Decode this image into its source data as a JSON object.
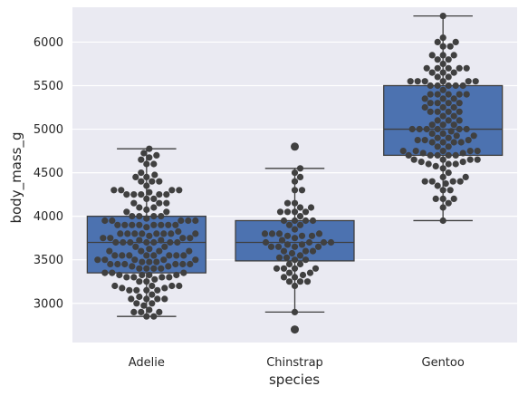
{
  "colors": {
    "plot_background": "#eaeaf2",
    "grid": "#ffffff",
    "box_fill": "#4c72b0",
    "box_edge": "#3f3f3f",
    "point": "#404040"
  },
  "chart_data": {
    "type": "box+swarm",
    "xlabel": "species",
    "ylabel": "body_mass_g",
    "categories": [
      "Adelie",
      "Chinstrap",
      "Gentoo"
    ],
    "ylim": [
      2550,
      6400
    ],
    "yticks": [
      3000,
      3500,
      4000,
      4500,
      5000,
      5500,
      6000
    ],
    "grid": true,
    "boxes": [
      {
        "category": "Adelie",
        "whisker_low": 2850,
        "q1": 3350,
        "median": 3700,
        "q3": 4000,
        "whisker_high": 4775,
        "outliers": []
      },
      {
        "category": "Chinstrap",
        "whisker_low": 2900,
        "q1": 3487.5,
        "median": 3700,
        "q3": 3950,
        "whisker_high": 4550,
        "outliers": [
          2700,
          4800
        ]
      },
      {
        "category": "Gentoo",
        "whisker_low": 3950,
        "q1": 4700,
        "median": 5000,
        "q3": 5500,
        "whisker_high": 6300,
        "outliers": []
      }
    ],
    "points": {
      "Adelie": [
        3750,
        3800,
        3250,
        3450,
        3650,
        3625,
        4675,
        3475,
        4250,
        3300,
        3700,
        3200,
        3800,
        4400,
        3700,
        3450,
        4500,
        3325,
        4200,
        3400,
        3600,
        3800,
        3950,
        3800,
        3800,
        3550,
        3200,
        3150,
        3950,
        3250,
        3900,
        3300,
        3900,
        3325,
        4150,
        3950,
        3550,
        3300,
        4650,
        3150,
        3900,
        3100,
        4400,
        3000,
        4600,
        3425,
        2975,
        3450,
        4150,
        3500,
        4300,
        3450,
        4050,
        2900,
        3700,
        3550,
        3800,
        2850,
        3750,
        3150,
        4400,
        3600,
        4050,
        2850,
        3950,
        3350,
        4100,
        3050,
        4450,
        3600,
        3900,
        3550,
        4150,
        3700,
        4250,
        3700,
        3900,
        3550,
        4000,
        3200,
        4700,
        3800,
        4200,
        3350,
        3550,
        3800,
        3500,
        3950,
        3600,
        3550,
        4300,
        3400,
        4450,
        3300,
        4300,
        3700,
        4350,
        2900,
        4100,
        3725,
        4725,
        3075,
        4250,
        2925,
        3550,
        3750,
        3900,
        3175,
        4775,
        3825,
        4600,
        3200,
        4275,
        3900,
        4075,
        2900,
        3775,
        3350,
        3325,
        3150,
        3500,
        3450,
        3875,
        3050,
        4000,
        3275,
        4300,
        3050,
        4000,
        3325,
        3500,
        3500,
        4475,
        3425,
        3900,
        3175,
        3975,
        3400,
        4250,
        3400,
        3475,
        3050,
        3725,
        3000,
        3650,
        4250,
        3475,
        3450,
        3750,
        3700,
        4000
      ],
      "Chinstrap": [
        3500,
        3900,
        3650,
        3525,
        3725,
        3950,
        3250,
        3750,
        4150,
        3700,
        3800,
        3775,
        3700,
        4050,
        3575,
        4050,
        3300,
        3700,
        3450,
        4400,
        3600,
        3400,
        2900,
        3800,
        3300,
        4150,
        3400,
        3800,
        3700,
        4550,
        3200,
        4300,
        3350,
        4100,
        3600,
        3900,
        3850,
        4800,
        2700,
        4500,
        3950,
        3650,
        3550,
        3500,
        3675,
        4450,
        3400,
        4300,
        3250,
        3675,
        3325,
        3950,
        3600,
        4050,
        3350,
        3450,
        3250,
        4050,
        3800,
        3525,
        3950,
        3650,
        3650,
        4000,
        3400,
        3775,
        4100,
        3775
      ],
      "Gentoo": [
        4500,
        5700,
        4450,
        5700,
        5400,
        4550,
        4800,
        5200,
        4400,
        5150,
        4650,
        5550,
        4650,
        5850,
        4200,
        5850,
        4150,
        6300,
        4800,
        5350,
        5700,
        5000,
        4400,
        5050,
        5000,
        5100,
        4100,
        5650,
        4600,
        5550,
        5250,
        4700,
        5050,
        6050,
        5150,
        5400,
        4950,
        5250,
        4350,
        5350,
        3950,
        5700,
        4300,
        4750,
        5550,
        4900,
        4200,
        5400,
        5100,
        5300,
        4850,
        5300,
        4400,
        5000,
        4900,
        5050,
        4300,
        5000,
        4450,
        5550,
        4200,
        5300,
        4400,
        5650,
        4700,
        5700,
        4650,
        5800,
        4700,
        5550,
        4750,
        5000,
        5100,
        5200,
        4700,
        5800,
        4600,
        6000,
        4750,
        5950,
        4625,
        5450,
        4725,
        5350,
        4750,
        5600,
        4600,
        5300,
        4875,
        5550,
        4950,
        5400,
        4750,
        5650,
        4850,
        5200,
        4925,
        4875,
        4625,
        5250,
        4850,
        5600,
        4975,
        5500,
        4725,
        5500,
        4700,
        5500,
        4575,
        5500,
        5000,
        5950,
        4650,
        5500,
        4375,
        5850,
        4875,
        6000,
        4925,
        4850,
        5750,
        5200,
        5400
      ]
    }
  }
}
